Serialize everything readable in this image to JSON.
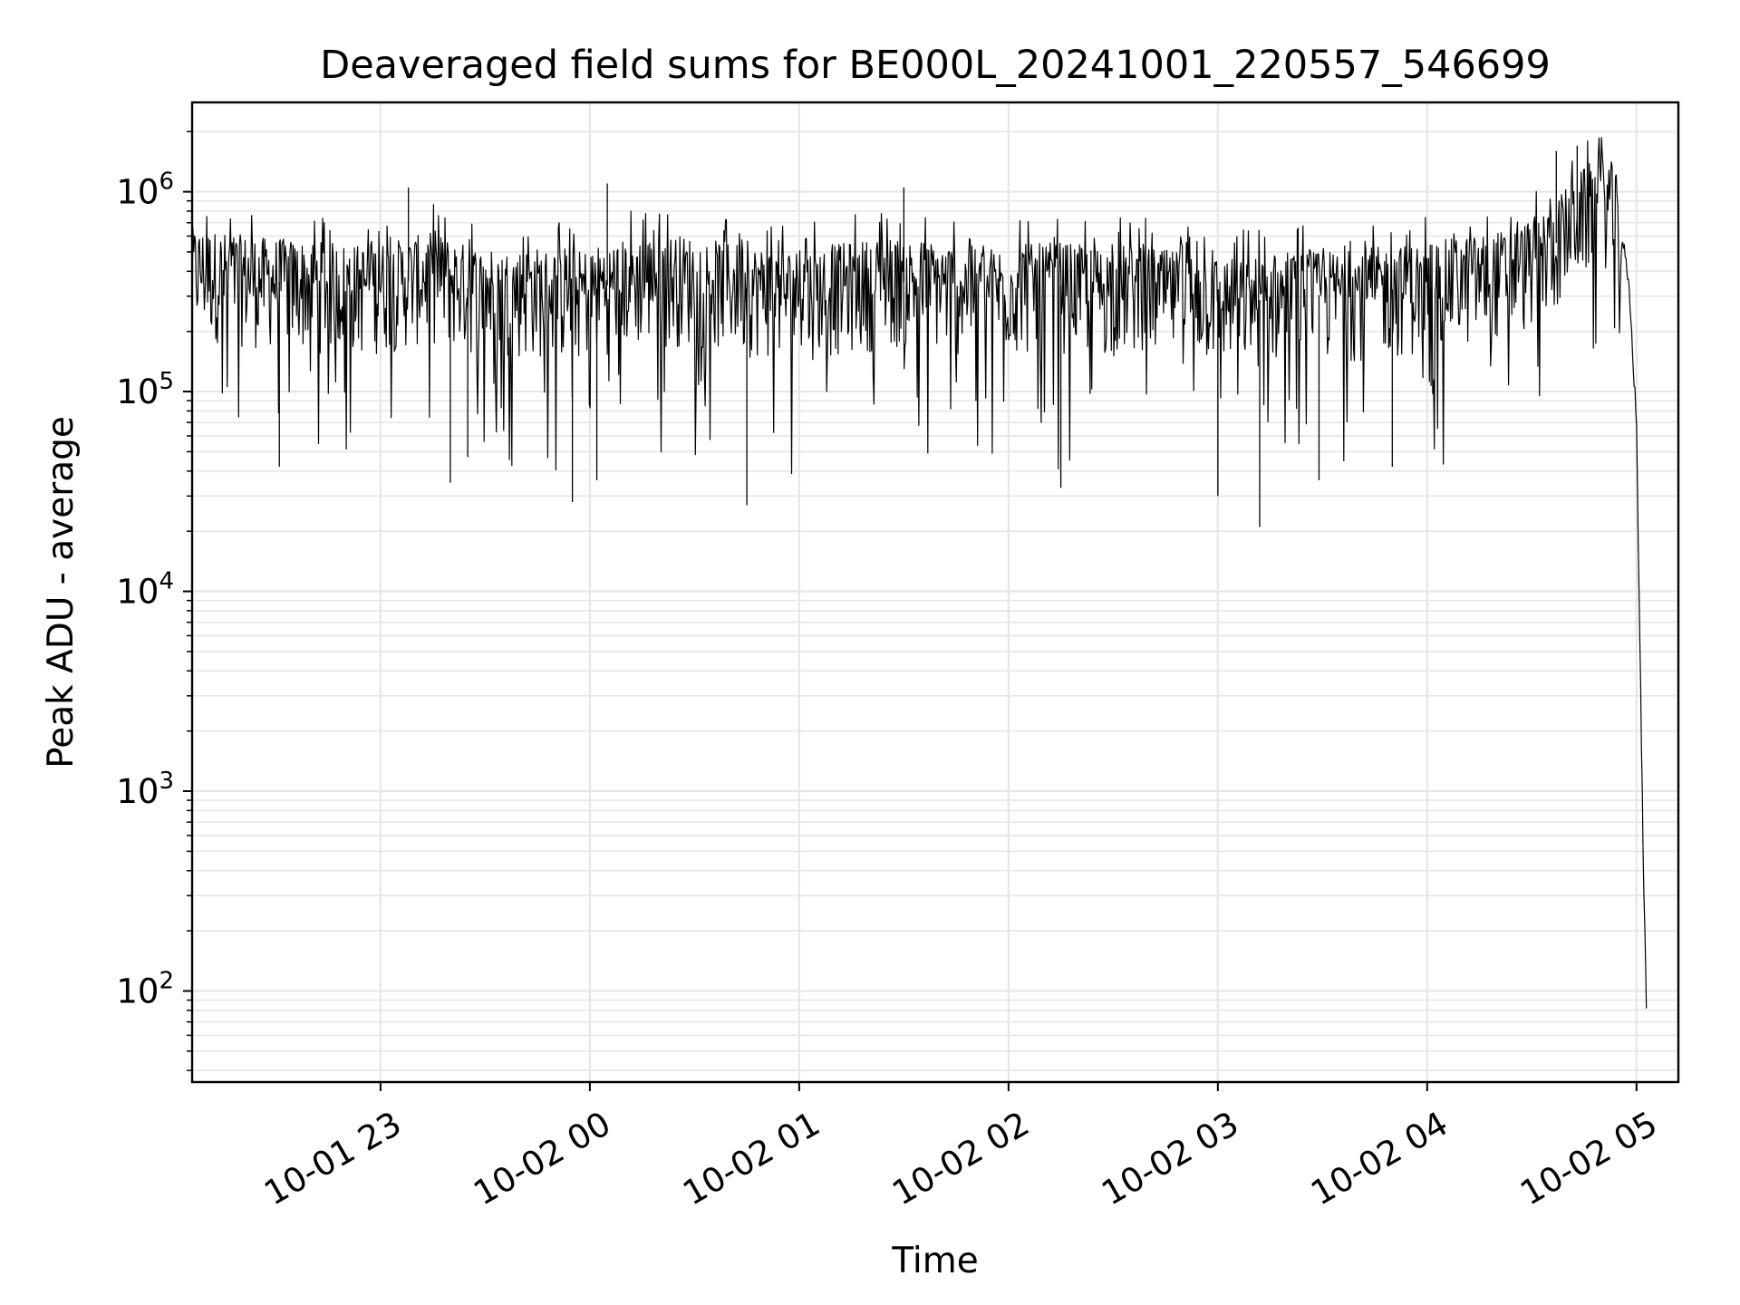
{
  "chart_data": {
    "type": "line",
    "title": "Deaveraged field sums for BE000L_20241001_220557_546699",
    "xlabel": "Time",
    "ylabel": "Peak ADU - average",
    "yscale": "log",
    "grid": true,
    "line_color": "#000000",
    "grid_color": "#e6e6e6",
    "xlim": [
      "2024-10-01 22:06",
      "2024-10-02 05:12"
    ],
    "ylim": [
      35,
      2800000
    ],
    "x_ticks": [
      {
        "value": "2024-10-01 23:00",
        "label": "10-01 23"
      },
      {
        "value": "2024-10-02 00:00",
        "label": "10-02 00"
      },
      {
        "value": "2024-10-02 01:00",
        "label": "10-02 01"
      },
      {
        "value": "2024-10-02 02:00",
        "label": "10-02 02"
      },
      {
        "value": "2024-10-02 03:00",
        "label": "10-02 03"
      },
      {
        "value": "2024-10-02 04:00",
        "label": "10-02 04"
      },
      {
        "value": "2024-10-02 05:00",
        "label": "10-02 05"
      }
    ],
    "y_ticks": [
      {
        "value": 100,
        "base": "10",
        "exp": "2"
      },
      {
        "value": 1000,
        "base": "10",
        "exp": "3"
      },
      {
        "value": 10000,
        "base": "10",
        "exp": "4"
      },
      {
        "value": 100000,
        "base": "10",
        "exp": "5"
      },
      {
        "value": 1000000,
        "base": "10",
        "exp": "6"
      }
    ],
    "series": [
      {
        "x": [
          "2024-10-01 22:06",
          "2024-10-01 22:15",
          "2024-10-01 22:25",
          "2024-10-01 22:35",
          "2024-10-01 22:45",
          "2024-10-01 22:55",
          "2024-10-01 23:05",
          "2024-10-01 23:15",
          "2024-10-01 23:25",
          "2024-10-01 23:35",
          "2024-10-01 23:45",
          "2024-10-01 23:55",
          "2024-10-02 00:05",
          "2024-10-02 00:15",
          "2024-10-02 00:25",
          "2024-10-02 00:35",
          "2024-10-02 00:45",
          "2024-10-02 00:55",
          "2024-10-02 01:05",
          "2024-10-02 01:15",
          "2024-10-02 01:25",
          "2024-10-02 01:35",
          "2024-10-02 01:45",
          "2024-10-02 01:55",
          "2024-10-02 02:05",
          "2024-10-02 02:15",
          "2024-10-02 02:25",
          "2024-10-02 02:35",
          "2024-10-02 02:45",
          "2024-10-02 02:55",
          "2024-10-02 03:05",
          "2024-10-02 03:15",
          "2024-10-02 03:25",
          "2024-10-02 03:35",
          "2024-10-02 03:45",
          "2024-10-02 03:55",
          "2024-10-02 04:05",
          "2024-10-02 04:15",
          "2024-10-02 04:25",
          "2024-10-02 04:35",
          "2024-10-02 04:40",
          "2024-10-02 04:45",
          "2024-10-02 04:50",
          "2024-10-02 04:53",
          "2024-10-02 04:56",
          "2024-10-02 04:58",
          "2024-10-02 05:00",
          "2024-10-02 05:01",
          "2024-10-02 05:02",
          "2024-10-02 05:03"
        ],
        "y": [
          400000,
          380000,
          360000,
          350000,
          340000,
          330000,
          350000,
          380000,
          330000,
          310000,
          320000,
          300000,
          340000,
          360000,
          370000,
          350000,
          330000,
          310000,
          320000,
          340000,
          360000,
          350000,
          330000,
          320000,
          330000,
          340000,
          320000,
          330000,
          310000,
          300000,
          280000,
          290000,
          300000,
          310000,
          320000,
          330000,
          350000,
          370000,
          400000,
          500000,
          650000,
          800000,
          950000,
          850000,
          600000,
          300000,
          70000,
          5000,
          400,
          60
        ]
      }
    ],
    "spikes": [
      {
        "x": "2024-10-01 22:31",
        "y": 42000
      },
      {
        "x": "2024-10-01 23:20",
        "y": 35000
      },
      {
        "x": "2024-10-01 23:25",
        "y": 47000
      },
      {
        "x": "2024-10-01 23:55",
        "y": 28000
      },
      {
        "x": "2024-10-02 00:02",
        "y": 36000
      },
      {
        "x": "2024-10-02 00:45",
        "y": 27000
      },
      {
        "x": "2024-10-02 02:15",
        "y": 33000
      },
      {
        "x": "2024-10-02 02:60",
        "y": 30000
      },
      {
        "x": "2024-10-02 03:12",
        "y": 21000
      },
      {
        "x": "2024-10-02 03:29",
        "y": 36000
      },
      {
        "x": "2024-10-02 03:50",
        "y": 42000
      },
      {
        "x": "2024-10-01 23:08",
        "y": 1050000
      },
      {
        "x": "2024-10-02 00:05",
        "y": 1100000
      },
      {
        "x": "2024-10-02 01:30",
        "y": 1050000
      },
      {
        "x": "2024-10-02 04:37",
        "y": 1600000
      },
      {
        "x": "2024-10-02 04:43",
        "y": 1700000
      },
      {
        "x": "2024-10-02 05:04",
        "y": 60
      }
    ]
  }
}
